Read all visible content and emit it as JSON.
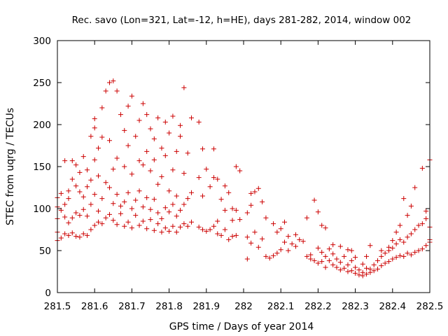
{
  "chart_data": {
    "type": "scatter",
    "title": "Rec. savo (Lon=321, Lat=-12, h=HE), days 281-282, 2014, window 002",
    "xlabel": "GPS time / Days of year 2014",
    "ylabel": "STEC from uqrg / TECUs",
    "xlim": [
      281.5,
      282.5
    ],
    "ylim": [
      0,
      300
    ],
    "xticks": [
      281.5,
      281.6,
      281.7,
      281.8,
      281.9,
      282,
      282.1,
      282.2,
      282.3,
      282.4,
      282.5
    ],
    "xtick_labels": [
      "281.5",
      "281.6",
      "281.7",
      "281.8",
      "281.9",
      "282",
      "282.1",
      "282.2",
      "282.3",
      "282.4",
      "282.5"
    ],
    "yticks": [
      0,
      50,
      100,
      150,
      200,
      250,
      300
    ],
    "ytick_labels": [
      "0",
      "50",
      "100",
      "150",
      "200",
      "250",
      "300"
    ],
    "marker": "+",
    "color": "#cc0000",
    "grid": false,
    "legend": "none",
    "points": [
      [
        281.5,
        62
      ],
      [
        281.5,
        72
      ],
      [
        281.5,
        88
      ],
      [
        281.5,
        102
      ],
      [
        281.5,
        113
      ],
      [
        281.51,
        65
      ],
      [
        281.51,
        98
      ],
      [
        281.51,
        118
      ],
      [
        281.52,
        70
      ],
      [
        281.52,
        90
      ],
      [
        281.52,
        105
      ],
      [
        281.52,
        157
      ],
      [
        281.53,
        68
      ],
      [
        281.53,
        83
      ],
      [
        281.53,
        112
      ],
      [
        281.53,
        121
      ],
      [
        281.54,
        71
      ],
      [
        281.54,
        89
      ],
      [
        281.54,
        135
      ],
      [
        281.54,
        157
      ],
      [
        281.55,
        67
      ],
      [
        281.55,
        95
      ],
      [
        281.55,
        127
      ],
      [
        281.55,
        152
      ],
      [
        281.56,
        66
      ],
      [
        281.56,
        92
      ],
      [
        281.56,
        120
      ],
      [
        281.56,
        143
      ],
      [
        281.57,
        70
      ],
      [
        281.57,
        99
      ],
      [
        281.57,
        114
      ],
      [
        281.57,
        162
      ],
      [
        281.58,
        68
      ],
      [
        281.58,
        91
      ],
      [
        281.58,
        126
      ],
      [
        281.58,
        146
      ],
      [
        281.59,
        75
      ],
      [
        281.59,
        105
      ],
      [
        281.59,
        134
      ],
      [
        281.59,
        186
      ],
      [
        281.6,
        80
      ],
      [
        281.6,
        117
      ],
      [
        281.6,
        158
      ],
      [
        281.6,
        196
      ],
      [
        281.6,
        207
      ],
      [
        281.61,
        84
      ],
      [
        281.61,
        97
      ],
      [
        281.61,
        139
      ],
      [
        281.61,
        172
      ],
      [
        281.62,
        82
      ],
      [
        281.62,
        112
      ],
      [
        281.62,
        185
      ],
      [
        281.62,
        220
      ],
      [
        281.63,
        89
      ],
      [
        281.63,
        131
      ],
      [
        281.63,
        240
      ],
      [
        281.64,
        93
      ],
      [
        281.64,
        125
      ],
      [
        281.64,
        181
      ],
      [
        281.64,
        250
      ],
      [
        281.65,
        86
      ],
      [
        281.65,
        106
      ],
      [
        281.65,
        147
      ],
      [
        281.65,
        252
      ],
      [
        281.66,
        81
      ],
      [
        281.66,
        117
      ],
      [
        281.66,
        160
      ],
      [
        281.66,
        240
      ],
      [
        281.67,
        94
      ],
      [
        281.67,
        103
      ],
      [
        281.67,
        212
      ],
      [
        281.68,
        79
      ],
      [
        281.68,
        108
      ],
      [
        281.68,
        150
      ],
      [
        281.68,
        193
      ],
      [
        281.69,
        84
      ],
      [
        281.69,
        119
      ],
      [
        281.69,
        175
      ],
      [
        281.69,
        222
      ],
      [
        281.7,
        77
      ],
      [
        281.7,
        100
      ],
      [
        281.7,
        141
      ],
      [
        281.7,
        234
      ],
      [
        281.71,
        92
      ],
      [
        281.71,
        110
      ],
      [
        281.71,
        186
      ],
      [
        281.72,
        80
      ],
      [
        281.72,
        121
      ],
      [
        281.72,
        157
      ],
      [
        281.72,
        205
      ],
      [
        281.73,
        85
      ],
      [
        281.73,
        102
      ],
      [
        281.73,
        152
      ],
      [
        281.73,
        225
      ],
      [
        281.74,
        76
      ],
      [
        281.74,
        113
      ],
      [
        281.74,
        168
      ],
      [
        281.74,
        212
      ],
      [
        281.75,
        87
      ],
      [
        281.75,
        99
      ],
      [
        281.75,
        145
      ],
      [
        281.75,
        195
      ],
      [
        281.76,
        74
      ],
      [
        281.76,
        111
      ],
      [
        281.76,
        158
      ],
      [
        281.76,
        183
      ],
      [
        281.77,
        82
      ],
      [
        281.77,
        95
      ],
      [
        281.77,
        129
      ],
      [
        281.77,
        208
      ],
      [
        281.78,
        72
      ],
      [
        281.78,
        88
      ],
      [
        281.78,
        138
      ],
      [
        281.78,
        172
      ],
      [
        281.79,
        77
      ],
      [
        281.79,
        101
      ],
      [
        281.79,
        163
      ],
      [
        281.79,
        203
      ],
      [
        281.8,
        73
      ],
      [
        281.8,
        96
      ],
      [
        281.8,
        121
      ],
      [
        281.8,
        190
      ],
      [
        281.81,
        79
      ],
      [
        281.81,
        105
      ],
      [
        281.81,
        146
      ],
      [
        281.81,
        210
      ],
      [
        281.82,
        72
      ],
      [
        281.82,
        91
      ],
      [
        281.82,
        115
      ],
      [
        281.82,
        168
      ],
      [
        281.83,
        78
      ],
      [
        281.83,
        98
      ],
      [
        281.83,
        186
      ],
      [
        281.83,
        199
      ],
      [
        281.84,
        82
      ],
      [
        281.84,
        105
      ],
      [
        281.84,
        142
      ],
      [
        281.84,
        244
      ],
      [
        281.85,
        79
      ],
      [
        281.85,
        112
      ],
      [
        281.85,
        166
      ],
      [
        281.86,
        84
      ],
      [
        281.86,
        119
      ],
      [
        281.86,
        208
      ],
      [
        281.88,
        78
      ],
      [
        281.88,
        137
      ],
      [
        281.88,
        203
      ],
      [
        281.89,
        75
      ],
      [
        281.89,
        115
      ],
      [
        281.89,
        171
      ],
      [
        281.9,
        73
      ],
      [
        281.9,
        147
      ],
      [
        281.91,
        75
      ],
      [
        281.91,
        126
      ],
      [
        281.92,
        79
      ],
      [
        281.92,
        137
      ],
      [
        281.92,
        171
      ],
      [
        281.93,
        70
      ],
      [
        281.93,
        85
      ],
      [
        281.93,
        135
      ],
      [
        281.94,
        68
      ],
      [
        281.94,
        111
      ],
      [
        281.95,
        75
      ],
      [
        281.95,
        98
      ],
      [
        281.95,
        127
      ],
      [
        281.96,
        63
      ],
      [
        281.96,
        119
      ],
      [
        281.97,
        67
      ],
      [
        281.97,
        86
      ],
      [
        281.97,
        100
      ],
      [
        281.98,
        68
      ],
      [
        281.98,
        98
      ],
      [
        281.98,
        150
      ],
      [
        281.99,
        87
      ],
      [
        281.99,
        145
      ],
      [
        282.01,
        40
      ],
      [
        282.01,
        66
      ],
      [
        282.01,
        95
      ],
      [
        282.02,
        59
      ],
      [
        282.02,
        104
      ],
      [
        282.02,
        118
      ],
      [
        282.03,
        72
      ],
      [
        282.03,
        120
      ],
      [
        282.04,
        54
      ],
      [
        282.04,
        124
      ],
      [
        282.05,
        64
      ],
      [
        282.05,
        108
      ],
      [
        282.06,
        43
      ],
      [
        282.06,
        89
      ],
      [
        282.07,
        41
      ],
      [
        282.08,
        44
      ],
      [
        282.08,
        82
      ],
      [
        282.09,
        47
      ],
      [
        282.09,
        72
      ],
      [
        282.1,
        51
      ],
      [
        282.1,
        76
      ],
      [
        282.11,
        60
      ],
      [
        282.11,
        84
      ],
      [
        282.12,
        50
      ],
      [
        282.12,
        67
      ],
      [
        282.13,
        58
      ],
      [
        282.14,
        55
      ],
      [
        282.14,
        69
      ],
      [
        282.15,
        63
      ],
      [
        282.16,
        61
      ],
      [
        282.17,
        43
      ],
      [
        282.17,
        89
      ],
      [
        282.18,
        40
      ],
      [
        282.18,
        45
      ],
      [
        282.19,
        38
      ],
      [
        282.19,
        110
      ],
      [
        282.2,
        35
      ],
      [
        282.2,
        53
      ],
      [
        282.2,
        96
      ],
      [
        282.21,
        37
      ],
      [
        282.21,
        48
      ],
      [
        282.21,
        80
      ],
      [
        282.22,
        30
      ],
      [
        282.22,
        43
      ],
      [
        282.22,
        77
      ],
      [
        282.23,
        38
      ],
      [
        282.23,
        52
      ],
      [
        282.24,
        33
      ],
      [
        282.24,
        46
      ],
      [
        282.24,
        57
      ],
      [
        282.25,
        30
      ],
      [
        282.25,
        40
      ],
      [
        282.26,
        27
      ],
      [
        282.26,
        36
      ],
      [
        282.26,
        55
      ],
      [
        282.27,
        29
      ],
      [
        282.27,
        43
      ],
      [
        282.28,
        25
      ],
      [
        282.28,
        33
      ],
      [
        282.28,
        51
      ],
      [
        282.29,
        26
      ],
      [
        282.29,
        38
      ],
      [
        282.29,
        50
      ],
      [
        282.3,
        23
      ],
      [
        282.3,
        30
      ],
      [
        282.3,
        42
      ],
      [
        282.31,
        21
      ],
      [
        282.31,
        27
      ],
      [
        282.32,
        20
      ],
      [
        282.32,
        24
      ],
      [
        282.32,
        34
      ],
      [
        282.33,
        22
      ],
      [
        282.33,
        29
      ],
      [
        282.33,
        43
      ],
      [
        282.34,
        24
      ],
      [
        282.34,
        28
      ],
      [
        282.34,
        56
      ],
      [
        282.35,
        26
      ],
      [
        282.35,
        33
      ],
      [
        282.36,
        28
      ],
      [
        282.36,
        38
      ],
      [
        282.37,
        32
      ],
      [
        282.37,
        43
      ],
      [
        282.37,
        50
      ],
      [
        282.38,
        35
      ],
      [
        282.38,
        47
      ],
      [
        282.39,
        37
      ],
      [
        282.39,
        50
      ],
      [
        282.39,
        54
      ],
      [
        282.4,
        40
      ],
      [
        282.4,
        53
      ],
      [
        282.4,
        62
      ],
      [
        282.41,
        42
      ],
      [
        282.41,
        58
      ],
      [
        282.41,
        72
      ],
      [
        282.42,
        44
      ],
      [
        282.42,
        63
      ],
      [
        282.42,
        80
      ],
      [
        282.43,
        43
      ],
      [
        282.43,
        60
      ],
      [
        282.43,
        112
      ],
      [
        282.44,
        47
      ],
      [
        282.44,
        66
      ],
      [
        282.44,
        92
      ],
      [
        282.45,
        45
      ],
      [
        282.45,
        70
      ],
      [
        282.45,
        103
      ],
      [
        282.46,
        48
      ],
      [
        282.46,
        75
      ],
      [
        282.46,
        125
      ],
      [
        282.47,
        50
      ],
      [
        282.47,
        80
      ],
      [
        282.48,
        52
      ],
      [
        282.48,
        82
      ],
      [
        282.48,
        148
      ],
      [
        282.49,
        56
      ],
      [
        282.49,
        88
      ],
      [
        282.49,
        97
      ],
      [
        282.5,
        60
      ],
      [
        282.5,
        63
      ],
      [
        282.5,
        78
      ],
      [
        282.5,
        158
      ]
    ]
  }
}
